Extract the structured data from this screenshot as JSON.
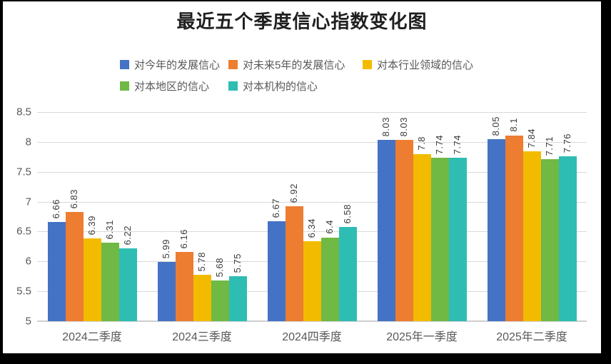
{
  "frame": {
    "background_color": "#000000",
    "canvas_color": "#ffffff"
  },
  "chart_data": {
    "type": "bar",
    "title": "最近五个季度信心指数变化图",
    "categories": [
      "2024二季度",
      "2024三季度",
      "2024四季度",
      "2025年一季度",
      "2025年二季度"
    ],
    "series": [
      {
        "name": "对今年的发展信心",
        "color": "#4473C5",
        "values": [
          6.66,
          5.99,
          6.67,
          8.03,
          8.05
        ]
      },
      {
        "name": "对未来5年的发展信心",
        "color": "#ED7D31",
        "values": [
          6.83,
          6.16,
          6.92,
          8.03,
          8.1
        ]
      },
      {
        "name": "对本行业领域的信心",
        "color": "#F2BB00",
        "values": [
          6.39,
          5.78,
          6.34,
          7.8,
          7.84
        ]
      },
      {
        "name": "对本地区的信心",
        "color": "#70B945",
        "values": [
          6.31,
          5.68,
          6.4,
          7.74,
          7.71
        ]
      },
      {
        "name": "对本机构的信心",
        "color": "#2EBDB3",
        "values": [
          6.22,
          5.75,
          6.58,
          7.74,
          7.76
        ]
      }
    ],
    "ylim": [
      5,
      8.5
    ],
    "y_ticks": [
      5,
      5.5,
      6,
      6.5,
      7,
      7.5,
      8,
      8.5
    ],
    "grid": true,
    "legend_position": "top",
    "value_labels": "rotated-90-above-bars",
    "axis_text_color": "#595959",
    "gridline_color": "#d9d9d9"
  }
}
